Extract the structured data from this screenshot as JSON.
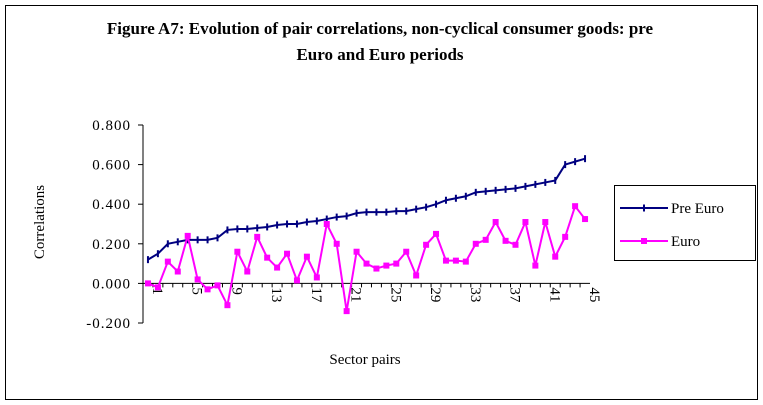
{
  "chart_data": {
    "type": "line",
    "title": "Figure A7: Evolution of pair correlations, non-cyclical consumer goods: pre Euro and Euro periods",
    "x_label": "Sector pairs",
    "y_label": "Correlations",
    "categories": [
      "1",
      null,
      null,
      null,
      "5",
      null,
      null,
      null,
      "9",
      null,
      null,
      null,
      "13",
      null,
      null,
      null,
      "17",
      null,
      null,
      null,
      "21",
      null,
      null,
      null,
      "25",
      null,
      null,
      null,
      "29",
      null,
      null,
      null,
      "33",
      null,
      null,
      null,
      "37",
      null,
      null,
      null,
      "41",
      null,
      null,
      null,
      "45"
    ],
    "series": [
      {
        "name": "Pre Euro",
        "color": "#000080",
        "marker": "dash",
        "values": [
          0.12,
          0.15,
          0.2,
          0.21,
          0.22,
          0.22,
          0.22,
          0.23,
          0.27,
          0.275,
          0.275,
          0.28,
          0.285,
          0.295,
          0.3,
          0.3,
          0.31,
          0.315,
          0.325,
          0.335,
          0.34,
          0.355,
          0.36,
          0.36,
          0.36,
          0.365,
          0.365,
          0.375,
          0.385,
          0.4,
          0.42,
          0.43,
          0.44,
          0.46,
          0.465,
          0.47,
          0.475,
          0.48,
          0.49,
          0.5,
          0.51,
          0.52,
          0.6,
          0.615,
          0.63
        ]
      },
      {
        "name": "Euro",
        "color": "#ff00ff",
        "marker": "square",
        "values": [
          0.0,
          -0.02,
          0.11,
          0.06,
          0.24,
          0.02,
          -0.03,
          -0.01,
          -0.11,
          0.16,
          0.06,
          0.235,
          0.13,
          0.08,
          0.15,
          0.015,
          0.135,
          0.03,
          0.3,
          0.2,
          -0.14,
          0.16,
          0.1,
          0.075,
          0.09,
          0.1,
          0.16,
          0.04,
          0.195,
          0.25,
          0.115,
          0.115,
          0.11,
          0.2,
          0.22,
          0.31,
          0.215,
          0.195,
          0.31,
          0.09,
          0.31,
          0.135,
          0.235,
          0.39,
          0.325
        ]
      }
    ],
    "ylim": [
      -0.2,
      0.8
    ],
    "yticks": [
      {
        "value": -0.2,
        "label": "-0.200"
      },
      {
        "value": 0,
        "label": "0.000"
      },
      {
        "value": 0.2,
        "label": "0.200"
      },
      {
        "value": 0.4,
        "label": "0.400"
      },
      {
        "value": 0.6,
        "label": "0.600"
      },
      {
        "value": 0.8,
        "label": "0.800"
      }
    ],
    "grid": false,
    "legend": "right"
  }
}
